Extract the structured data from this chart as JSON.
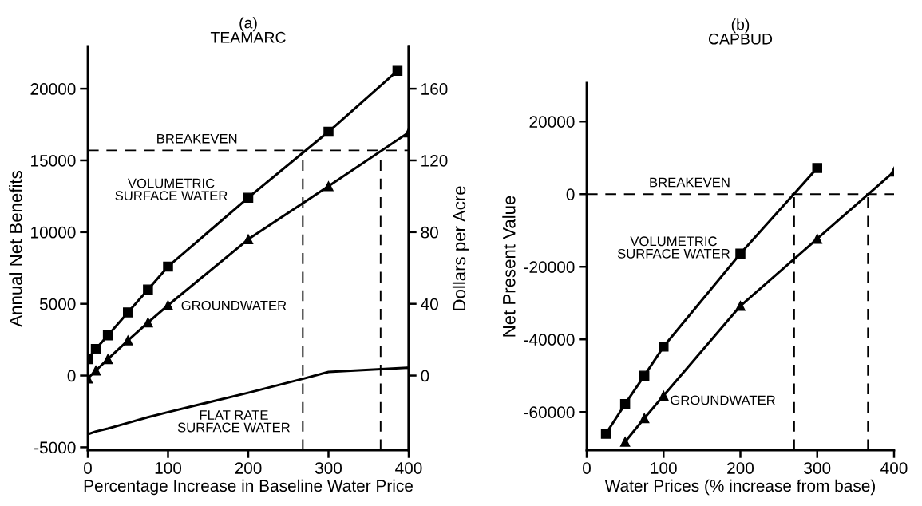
{
  "chart_data": [
    {
      "type": "line",
      "title": "(a)\nTEAMARC",
      "xlabel": "Percentage Increase in Baseline Water Price",
      "ylabel": "Annual Net Benefits",
      "y2label": "Dollars per Acre",
      "xlim": [
        0,
        400
      ],
      "xticks": [
        0,
        100,
        200,
        300,
        400
      ],
      "ylim": [
        -5200,
        22900
      ],
      "yticks": [
        -5000,
        0,
        5000,
        10000,
        15000,
        20000
      ],
      "y2lim": [
        -41.6,
        183.2
      ],
      "y2ticks": [
        0,
        40,
        80,
        120,
        160
      ],
      "series": [
        {
          "name": "VOLUMETRIC\nSURFACE WATER",
          "color": "#000000",
          "marker": "square",
          "x": [
            0,
            10,
            25,
            50,
            75,
            100,
            200,
            300,
            386
          ],
          "values": [
            1150,
            1850,
            2800,
            4400,
            6000,
            7600,
            12400,
            17000,
            21250
          ]
        },
        {
          "name": "GROUNDWATER",
          "color": "#000000",
          "marker": "triangle",
          "x": [
            0,
            10,
            25,
            50,
            75,
            100,
            200,
            300,
            400
          ],
          "values": [
            -200,
            350,
            1150,
            2450,
            3700,
            4900,
            9500,
            13200,
            16950
          ]
        },
        {
          "name": "FLAT RATE\nSURFACE WATER",
          "color": "#000000",
          "marker": "none",
          "x": [
            0,
            10,
            25,
            50,
            75,
            100,
            200,
            270,
            300,
            400
          ],
          "values": [
            -4100,
            -3900,
            -3700,
            -3300,
            -2900,
            -2550,
            -1200,
            -200,
            250,
            550
          ]
        }
      ],
      "ref_lines": [
        {
          "axis": "y",
          "value": 15700,
          "line_style": "dashed",
          "label": "BREAKEVEN"
        },
        {
          "axis": "x",
          "value": 268,
          "line_style": "dashed"
        },
        {
          "axis": "x",
          "value": 365,
          "line_style": "dashed"
        }
      ],
      "grid": false,
      "legend": false
    },
    {
      "type": "line",
      "title": "(b)\nCAPBUD",
      "xlabel": "Water Prices (% increase from base)",
      "ylabel": "Net Present Value",
      "xlim": [
        0,
        400
      ],
      "xticks": [
        0,
        100,
        200,
        300,
        400
      ],
      "ylim": [
        -70500,
        30600
      ],
      "yticks": [
        -60000,
        -40000,
        -20000,
        0,
        20000
      ],
      "series": [
        {
          "name": "VOLUMETRIC\nSURFACE WATER",
          "color": "#000000",
          "marker": "square",
          "x": [
            25,
            50,
            75,
            100,
            200,
            300
          ],
          "values": [
            -66000,
            -57800,
            -50000,
            -42000,
            -16400,
            7200
          ]
        },
        {
          "name": "GROUNDWATER",
          "color": "#000000",
          "marker": "triangle",
          "x": [
            50,
            75,
            100,
            200,
            300,
            400
          ],
          "values": [
            -68200,
            -61700,
            -55500,
            -30800,
            -12300,
            6200
          ]
        }
      ],
      "ref_lines": [
        {
          "axis": "y",
          "value": 0,
          "line_style": "dashed",
          "label": "BREAKEVEN"
        },
        {
          "axis": "x",
          "value": 270,
          "line_style": "dashed"
        },
        {
          "axis": "x",
          "value": 366,
          "line_style": "dashed"
        }
      ],
      "grid": false,
      "legend": false
    }
  ]
}
